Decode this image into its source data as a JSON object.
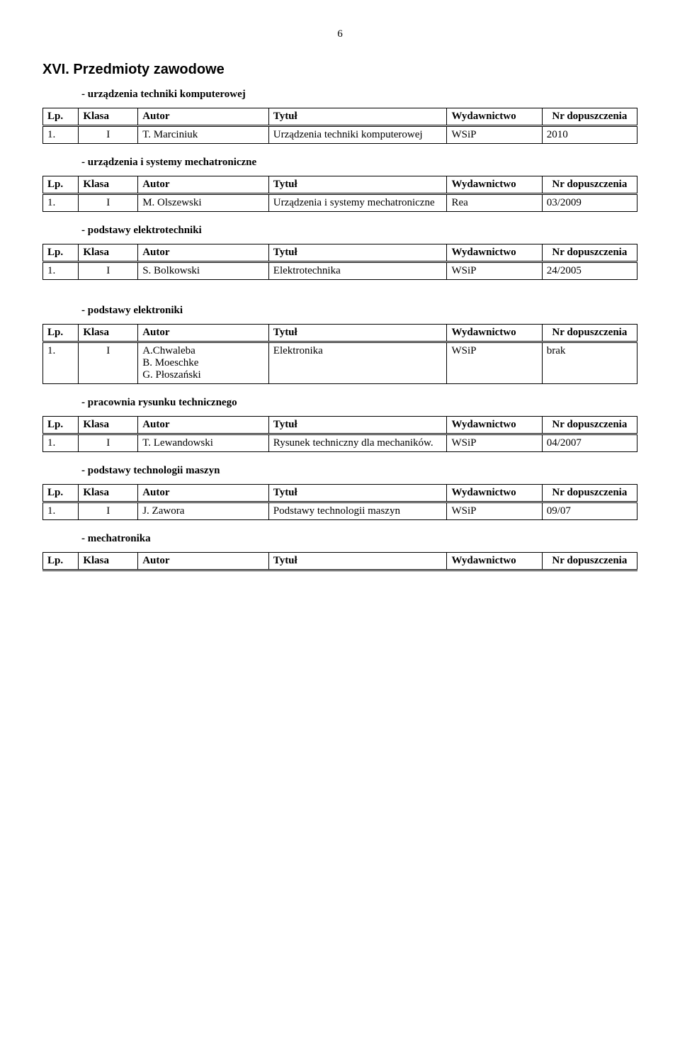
{
  "page_number": "6",
  "section_heading": "XVI.  Przedmioty zawodowe",
  "table_headers": {
    "lp": "Lp.",
    "klasa": "Klasa",
    "autor": "Autor",
    "tytul": "Tytuł",
    "wydawnictwo": "Wydawnictwo",
    "nr": "Nr dopuszczenia"
  },
  "sections": [
    {
      "title": "-  urządzenia techniki komputerowej",
      "rows": [
        {
          "lp": "1.",
          "klasa": "I",
          "autor": "T. Marciniuk",
          "tytul": "Urządzenia techniki komputerowej",
          "wyd": "WSiP",
          "nr": "2010"
        }
      ]
    },
    {
      "title": "-  urządzenia i systemy mechatroniczne",
      "rows": [
        {
          "lp": "1.",
          "klasa": "I",
          "autor": "M. Olszewski",
          "tytul": "Urządzenia i systemy mechatroniczne",
          "wyd": "Rea",
          "nr": "03/2009"
        }
      ]
    },
    {
      "title": "-  podstawy elektrotechniki",
      "rows": [
        {
          "lp": "1.",
          "klasa": "I",
          "autor": "S. Bolkowski",
          "tytul": "Elektrotechnika",
          "wyd": "WSiP",
          "nr": "24/2005"
        }
      ]
    },
    {
      "title": "-  podstawy elektroniki",
      "rows": [
        {
          "lp": "1.",
          "klasa": "I",
          "autor": "A.Chwaleba\nB. Moeschke\nG. Płoszański",
          "tytul": "Elektronika",
          "wyd": "WSiP",
          "nr": "brak"
        }
      ]
    },
    {
      "title": "-  pracownia rysunku technicznego",
      "rows": [
        {
          "lp": "1.",
          "klasa": "I",
          "autor": "T. Lewandowski",
          "tytul": "Rysunek techniczny dla mechaników.",
          "wyd": "WSiP",
          "nr": "04/2007"
        }
      ]
    },
    {
      "title": "-  podstawy technologii maszyn",
      "rows": [
        {
          "lp": "1.",
          "klasa": "I",
          "autor": "J. Zawora",
          "tytul": "Podstawy technologii maszyn",
          "wyd": "WSiP",
          "nr": "09/07"
        }
      ]
    },
    {
      "title": "-  mechatronika",
      "rows": []
    }
  ]
}
